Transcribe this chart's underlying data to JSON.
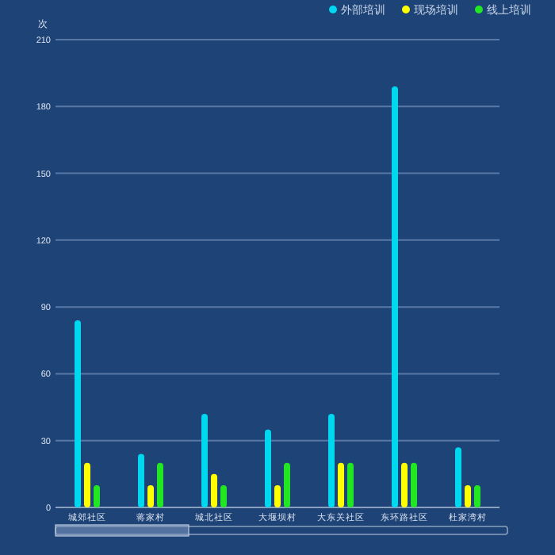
{
  "chart_data": {
    "type": "bar",
    "ylabel": "次",
    "categories": [
      "城郊社区",
      "蒋家村",
      "城北社区",
      "大堰坝村",
      "大东关社区",
      "东环路社区",
      "杜家湾村"
    ],
    "series": [
      {
        "name": "外部培训",
        "color": "#00d8f0",
        "values": [
          84,
          24,
          42,
          35,
          42,
          189,
          27
        ]
      },
      {
        "name": "现场培训",
        "color": "#ffff00",
        "values": [
          20,
          10,
          15,
          10,
          20,
          20,
          10
        ]
      },
      {
        "name": "线上培训",
        "color": "#22e622",
        "values": [
          10,
          20,
          10,
          20,
          20,
          20,
          10
        ]
      }
    ],
    "ylim": [
      0,
      210
    ],
    "yticks": [
      0,
      30,
      60,
      90,
      120,
      150,
      180,
      210
    ],
    "grid": "y",
    "legend": "top right"
  }
}
